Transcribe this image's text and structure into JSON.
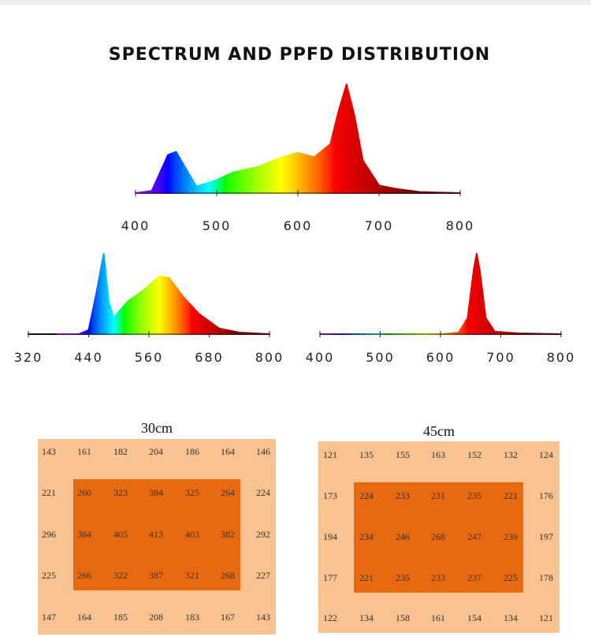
{
  "title": "SPECTRUM AND PPFD DISTRIBUTION",
  "chart_data": [
    {
      "type": "area",
      "x": [
        400,
        420,
        440,
        450,
        460,
        475,
        500,
        520,
        550,
        580,
        600,
        620,
        640,
        650,
        660,
        670,
        680,
        700,
        720,
        750,
        800
      ],
      "values": [
        0,
        0.02,
        0.35,
        0.38,
        0.25,
        0.06,
        0.12,
        0.19,
        0.24,
        0.33,
        0.37,
        0.33,
        0.45,
        0.75,
        1.0,
        0.7,
        0.3,
        0.07,
        0.04,
        0.01,
        0
      ],
      "xlim": [
        400,
        800
      ],
      "xticks": [
        400,
        500,
        600,
        700,
        800
      ]
    },
    {
      "type": "area",
      "x": [
        320,
        420,
        440,
        455,
        470,
        480,
        490,
        500,
        520,
        550,
        580,
        600,
        630,
        660,
        700,
        740,
        800
      ],
      "values": [
        0,
        0,
        0.05,
        0.5,
        1.0,
        0.4,
        0.2,
        0.28,
        0.42,
        0.55,
        0.72,
        0.7,
        0.45,
        0.25,
        0.07,
        0.02,
        0
      ],
      "xlim": [
        320,
        800
      ],
      "xticks": [
        320,
        440,
        560,
        680,
        800
      ]
    },
    {
      "type": "area",
      "x": [
        400,
        600,
        630,
        645,
        655,
        660,
        665,
        675,
        690,
        730,
        800
      ],
      "values": [
        0,
        0,
        0.02,
        0.2,
        0.8,
        1.0,
        0.8,
        0.2,
        0.03,
        0.01,
        0
      ],
      "xlim": [
        400,
        800
      ],
      "xticks": [
        400,
        500,
        600,
        700,
        800
      ]
    }
  ],
  "grids": [
    {
      "label": "30cm",
      "rows": [
        [
          143,
          161,
          182,
          204,
          186,
          164,
          146
        ],
        [
          221,
          260,
          323,
          384,
          325,
          264,
          224
        ],
        [
          296,
          384,
          405,
          413,
          403,
          382,
          292
        ],
        [
          225,
          266,
          322,
          387,
          321,
          268,
          227
        ],
        [
          147,
          164,
          185,
          208,
          183,
          167,
          143
        ]
      ]
    },
    {
      "label": "45cm",
      "rows": [
        [
          121,
          135,
          155,
          163,
          152,
          132,
          124
        ],
        [
          173,
          224,
          233,
          231,
          235,
          221,
          176
        ],
        [
          194,
          234,
          246,
          268,
          247,
          239,
          197
        ],
        [
          177,
          221,
          235,
          233,
          237,
          225,
          178
        ],
        [
          122,
          134,
          158,
          161,
          154,
          134,
          121
        ]
      ]
    }
  ]
}
